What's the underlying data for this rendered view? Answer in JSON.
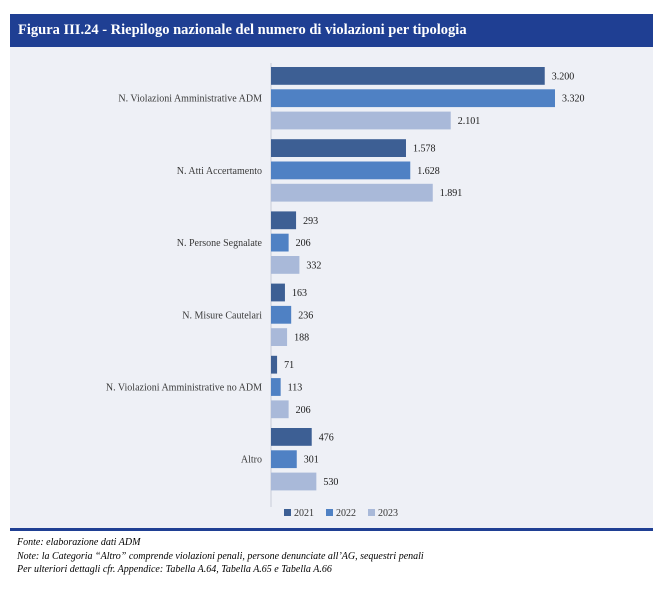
{
  "figure": {
    "title": "Figura III.24 - Riepilogo nazionale del numero di violazioni per tipologia"
  },
  "chart_data": {
    "type": "bar",
    "orientation": "horizontal",
    "categories": [
      "N. Violazioni Amministrative ADM",
      "N. Atti Accertamento",
      "N. Persone Segnalate",
      "N. Misure Cautelari",
      "N. Violazioni Amministrative no ADM",
      "Altro"
    ],
    "series": [
      {
        "name": "2021",
        "color": "#3d5f94",
        "values": [
          3200,
          1578,
          293,
          163,
          71,
          476
        ],
        "labels": [
          "3.200",
          "1.578",
          "293",
          "163",
          "71",
          "476"
        ]
      },
      {
        "name": "2022",
        "color": "#4f81c4",
        "values": [
          3320,
          1628,
          206,
          236,
          113,
          301
        ],
        "labels": [
          "3.320",
          "1.628",
          "206",
          "236",
          "113",
          "301"
        ]
      },
      {
        "name": "2023",
        "color": "#a9b9d9",
        "values": [
          2101,
          1891,
          332,
          188,
          206,
          530
        ],
        "labels": [
          "2.101",
          "1.891",
          "332",
          "188",
          "206",
          "530"
        ]
      }
    ],
    "xlim": [
      0,
      3320
    ],
    "grid": false,
    "legend": "bottom-center"
  },
  "notes": {
    "source": "Fonte: elaborazione dati ADM",
    "note": "Note: la Categoria “Altro” comprende violazioni penali, persone denunciate all’AG, sequestri penali",
    "further": "Per ulteriori dettagli cfr. Appendice: Tabella A.64, Tabella A.65 e Tabella A.66"
  }
}
